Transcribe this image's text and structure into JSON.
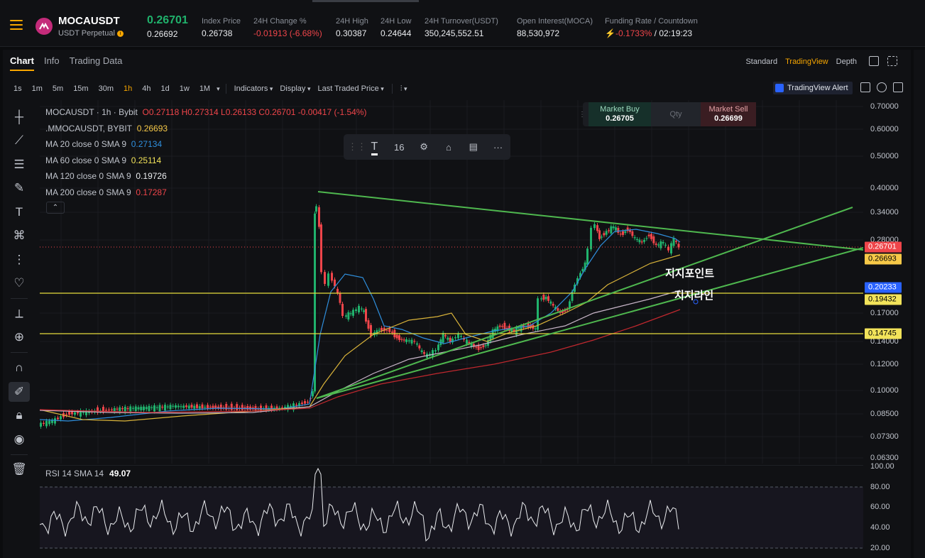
{
  "header": {
    "symbol": "MOCAUSDT",
    "subtitle": "USDT Perpetual",
    "last_price": "0.26701",
    "mark_price": "0.26692",
    "stats": [
      {
        "label": "Index Price",
        "value": "0.26738",
        "neg": false,
        "x": 284
      },
      {
        "label": "24H Change %",
        "value": "-0.01913 (-6.68%)",
        "neg": true,
        "x": 357
      },
      {
        "label": "24H High",
        "value": "0.30387",
        "neg": false,
        "x": 473
      },
      {
        "label": "24H Low",
        "value": "0.24644",
        "neg": false,
        "x": 536
      },
      {
        "label": "24H Turnover(USDT)",
        "value": "350,245,552.51",
        "neg": false,
        "x": 598
      },
      {
        "label": "Open Interest(MOCA)",
        "value": "88,530,972",
        "neg": false,
        "x": 728
      }
    ],
    "funding": {
      "label": "Funding Rate / Countdown",
      "rate": "-0.1733%",
      "countdown": "/ 02:19:23"
    }
  },
  "tabs": [
    "Chart",
    "Info",
    "Trading Data"
  ],
  "views": [
    "Standard",
    "TradingView",
    "Depth"
  ],
  "timeframes": [
    "1s",
    "1m",
    "5m",
    "15m",
    "30m",
    "1h",
    "4h",
    "1d",
    "1w",
    "1M"
  ],
  "active_timeframe": "1h",
  "menus": [
    "Indicators",
    "Display",
    "Last Traded Price"
  ],
  "alert_label": "TradingView Alert",
  "legend": {
    "title": "MOCAUSDT · 1h · Bybit",
    "ohlc": "O0.27118 H0.27314 L0.26133 C0.26701 -0.00417 (-1.54%)",
    "index": ".MMOCAUSDT, BYBIT",
    "index_val": "0.26693",
    "ma20": "MA 20 close 0 SMA 9",
    "ma20_val": "0.27134",
    "ma60": "MA 60 close 0 SMA 9",
    "ma60_val": "0.25114",
    "ma120": "MA 120 close 0 SMA 9",
    "ma120_val": "0.19726",
    "ma200": "MA 200 close 0 SMA 9",
    "ma200_val": "0.17287"
  },
  "trade_panel": {
    "buy_label": "Market Buy",
    "buy_price": "0.26705",
    "qty": "Qty",
    "sell_label": "Market Sell",
    "sell_price": "0.26699"
  },
  "draw_toolbar": {
    "font_size": "16"
  },
  "annotations": {
    "support_point": "지지포인트",
    "support_line": "지지라인"
  },
  "rsi": {
    "label": "RSI 14 SMA 14",
    "value": "49.07"
  },
  "axis_ticks": [
    "0.70000",
    "0.60000",
    "0.50000",
    "0.40000",
    "0.34000",
    "0.28000",
    "0.17000",
    "0.14000",
    "0.12000",
    "0.10000",
    "0.08500",
    "0.07300",
    "0.06300"
  ],
  "rsi_ticks": [
    "100.00",
    "80.00",
    "60.00",
    "40.00",
    "20.00"
  ],
  "price_tags": [
    {
      "value": "0.26701",
      "color": "#ef454a",
      "fg": "#fff"
    },
    {
      "value": "0.26693",
      "color": "#f7c948",
      "fg": "#000"
    },
    {
      "value": "0.20233",
      "color": "#2962ff",
      "fg": "#fff"
    },
    {
      "value": "0.19432",
      "color": "#f2e35a",
      "fg": "#000"
    },
    {
      "value": "0.14745",
      "color": "#f2e35a",
      "fg": "#000"
    }
  ],
  "colors": {
    "up": "#20b26c",
    "down": "#ef454a",
    "accent": "#f7a600",
    "ma20": "#2f8fdd",
    "ma60": "#d9b33a",
    "ma120": "#c9b6c9",
    "ma200": "#c0282e",
    "trend": "#4fb84f",
    "hline": "#e6dc3c"
  }
}
